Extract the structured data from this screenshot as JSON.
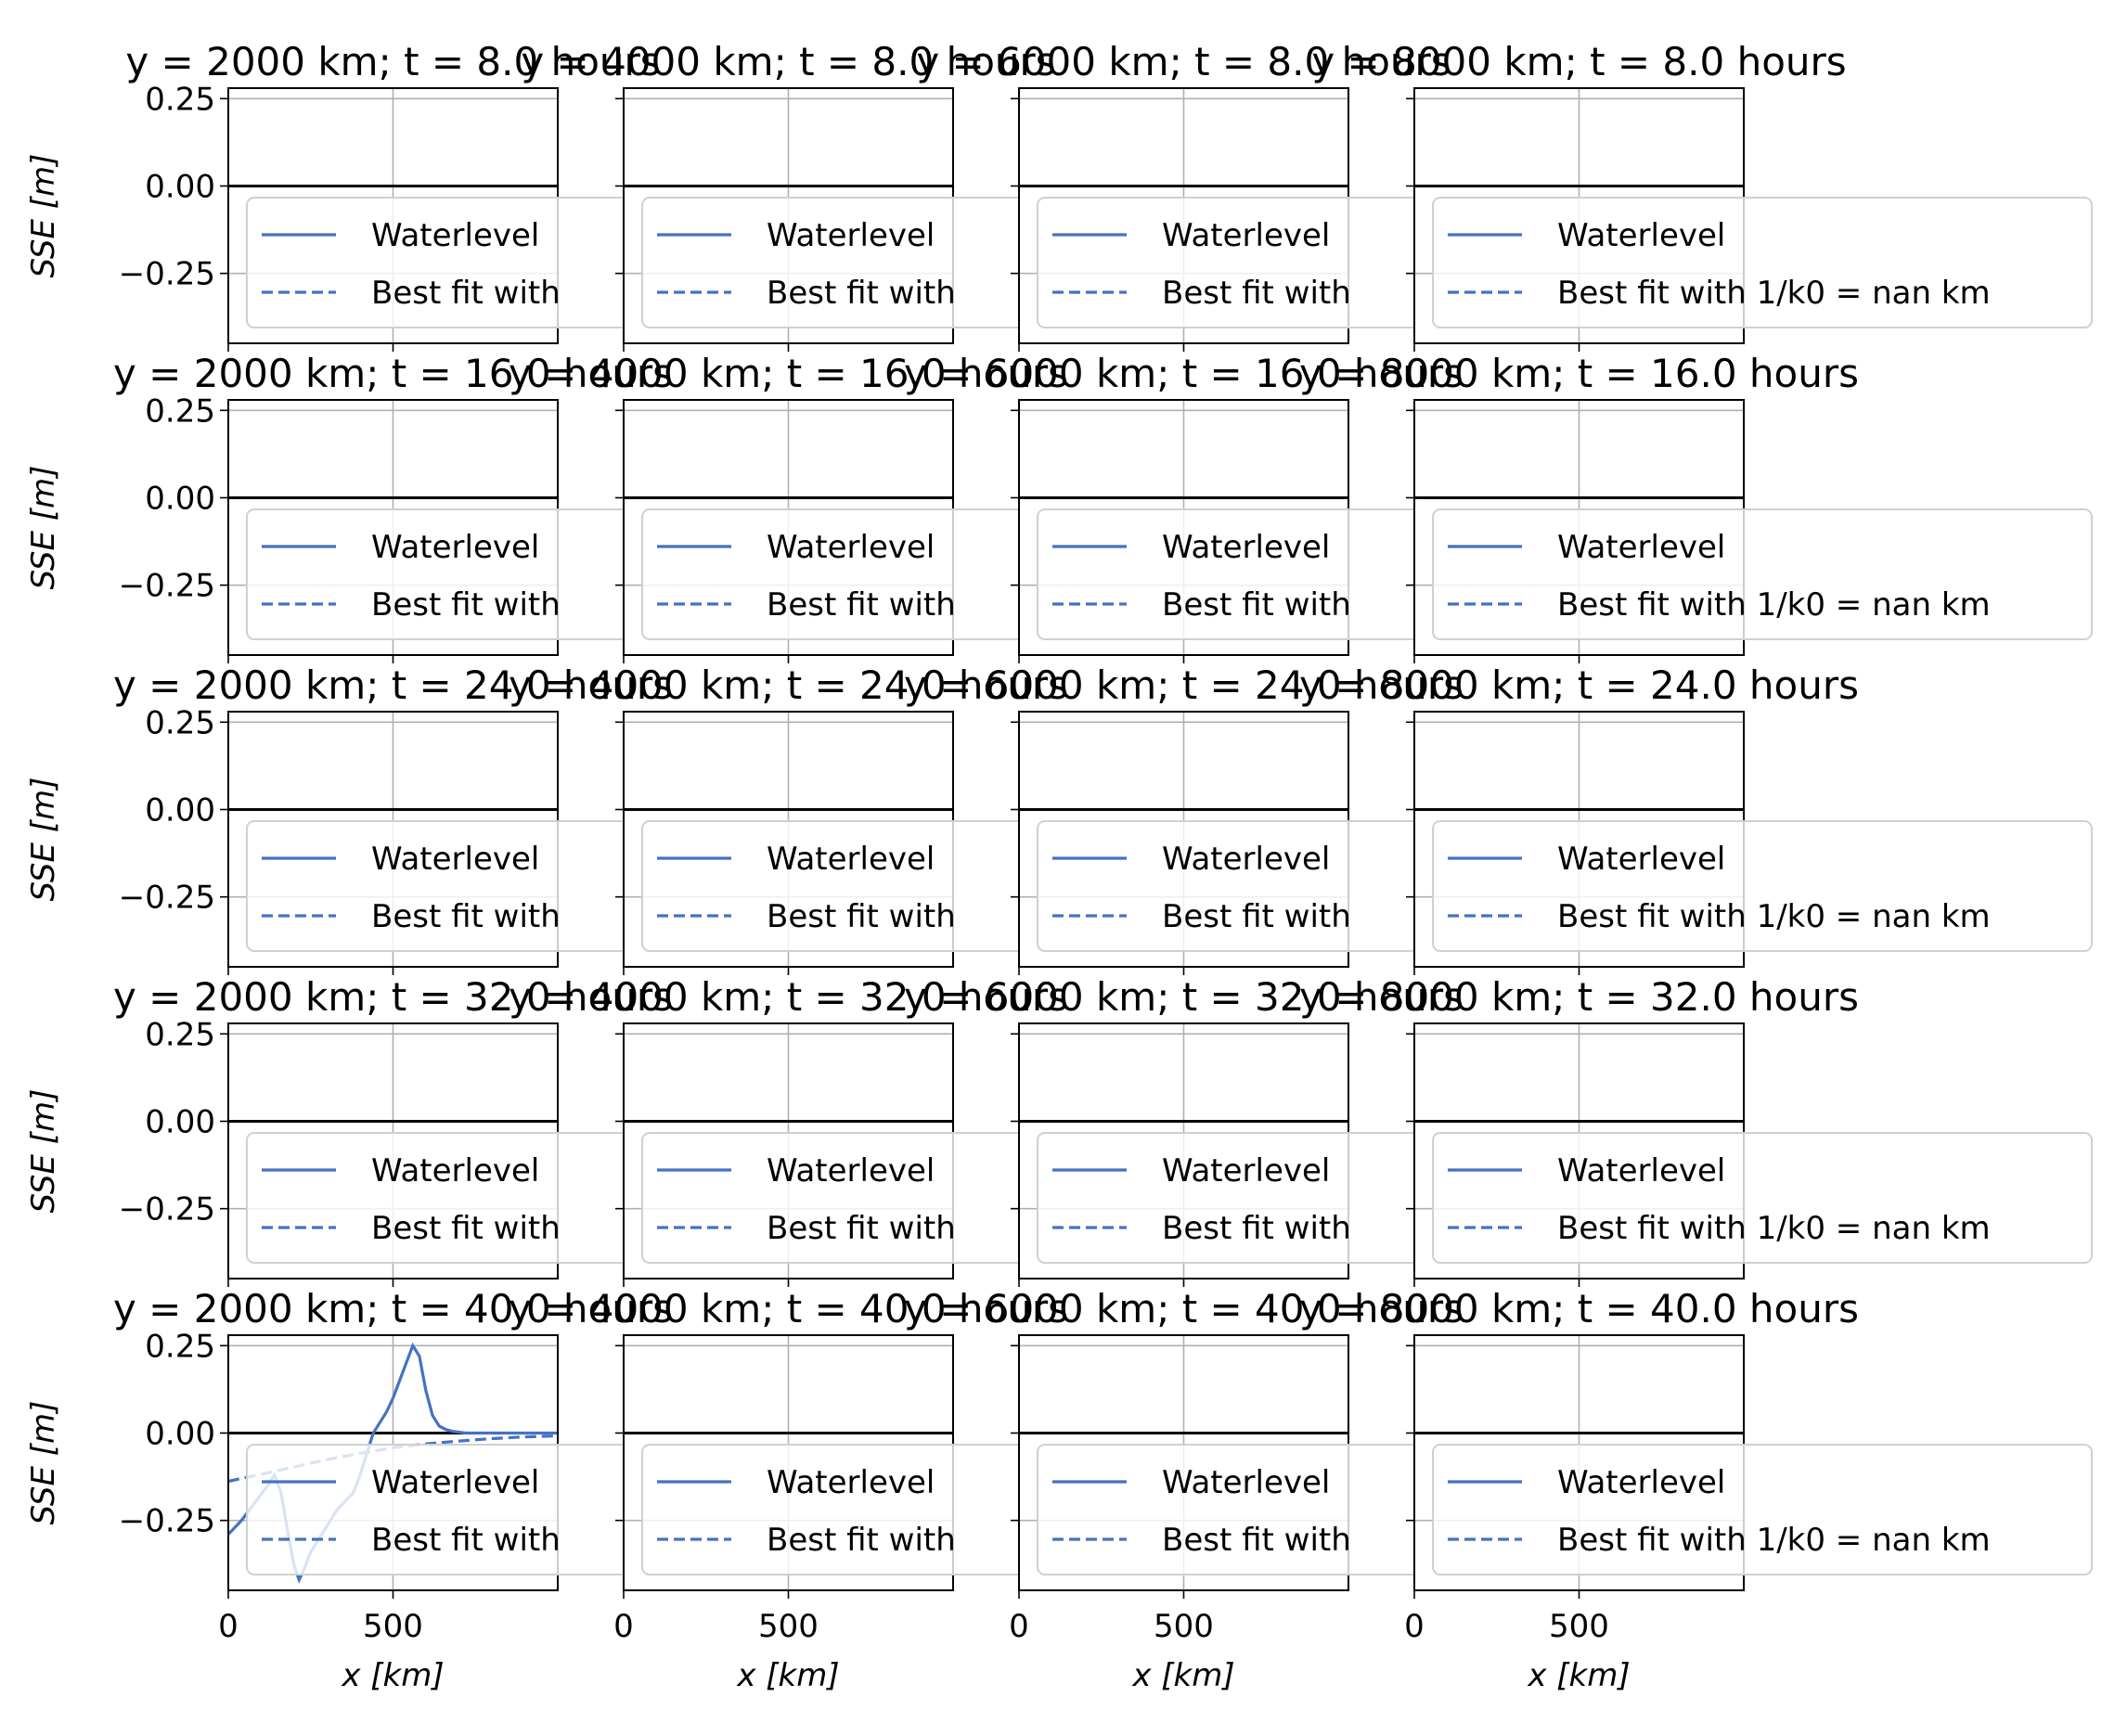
{
  "figure": {
    "row_titles_prefix": "",
    "x_label": "x [km]",
    "y_label": "SSE [m]",
    "legend": {
      "waterlevel": "Waterlevel",
      "bestfit": "Best fit with 1/k0 = nan km",
      "bestfit_truncated": "Best fit with"
    }
  },
  "chart_data": {
    "type": "line",
    "layout": "grid 5 rows x 4 columns of small multiples",
    "columns_y_km": [
      2000,
      4000,
      6000,
      8000
    ],
    "rows_t_hours": [
      "8.0",
      "16.0",
      "24.0",
      "32.0",
      "40.0"
    ],
    "titles": [
      [
        "y = 2000 km; t = 8.0 hours",
        "y = 4000 km; t = 8.0 hours",
        "y = 6000 km; t = 8.0 hours",
        "y = 8000 km; t = 8.0 hours"
      ],
      [
        "y = 2000 km; t = 16.0 hours",
        "y = 4000 km; t = 16.0 hours",
        "y = 6000 km; t = 16.0 hours",
        "y = 8000 km; t = 16.0 hours"
      ],
      [
        "y = 2000 km; t = 24.0 hours",
        "y = 4000 km; t = 24.0 hours",
        "y = 6000 km; t = 24.0 hours",
        "y = 8000 km; t = 24.0 hours"
      ],
      [
        "y = 2000 km; t = 32.0 hours",
        "y = 4000 km; t = 32.0 hours",
        "y = 6000 km; t = 32.0 hours",
        "y = 8000 km; t = 32.0 hours"
      ],
      [
        "y = 2000 km; t = 40.0 hours",
        "y = 4000 km; t = 40.0 hours",
        "y = 6000 km; t = 40.0 hours",
        "y = 8000 km; t = 40.0 hours"
      ]
    ],
    "xlim": [
      0,
      1000
    ],
    "ylim": [
      -0.45,
      0.28
    ],
    "xticks": [
      0,
      500
    ],
    "xtick_labels": [
      "0",
      "500"
    ],
    "yticks": [
      0.25,
      0.0,
      -0.25
    ],
    "ytick_labels": [
      "0.25",
      "0.00",
      "−0.25"
    ],
    "grid": true,
    "zero_line": true,
    "legend_placement": "lower-right",
    "colors": {
      "waterlevel": "#4472c4",
      "bestfit": "#4472c4",
      "faint": "#c9d6ee",
      "zero_line": "#000000",
      "grid": "#b0b0b0"
    },
    "series": [
      {
        "name": "Waterlevel",
        "panel": [
          4,
          0
        ],
        "style": "solid",
        "x": [
          0,
          40,
          80,
          120,
          140,
          160,
          180,
          200,
          215,
          230,
          250,
          270,
          290,
          310,
          330,
          350,
          380,
          400,
          420,
          440,
          460,
          480,
          500,
          520,
          540,
          560,
          580,
          600,
          620,
          640,
          660,
          680,
          720,
          800,
          900,
          1000
        ],
        "y": [
          -0.29,
          -0.25,
          -0.2,
          -0.15,
          -0.12,
          -0.17,
          -0.28,
          -0.38,
          -0.42,
          -0.39,
          -0.34,
          -0.31,
          -0.28,
          -0.25,
          -0.22,
          -0.2,
          -0.17,
          -0.12,
          -0.06,
          0.0,
          0.03,
          0.06,
          0.1,
          0.15,
          0.2,
          0.25,
          0.22,
          0.12,
          0.05,
          0.02,
          0.01,
          0.005,
          0.0,
          0.0,
          0.0,
          0.0
        ]
      },
      {
        "name": "Best fit with 1/k0 = nan km",
        "panel": [
          4,
          0
        ],
        "style": "dashed",
        "x": [
          0,
          100,
          200,
          300,
          400,
          500,
          600,
          700,
          800,
          900,
          1000
        ],
        "y": [
          -0.138,
          -0.118,
          -0.097,
          -0.076,
          -0.058,
          -0.042,
          -0.031,
          -0.023,
          -0.016,
          -0.011,
          -0.008
        ]
      }
    ]
  }
}
